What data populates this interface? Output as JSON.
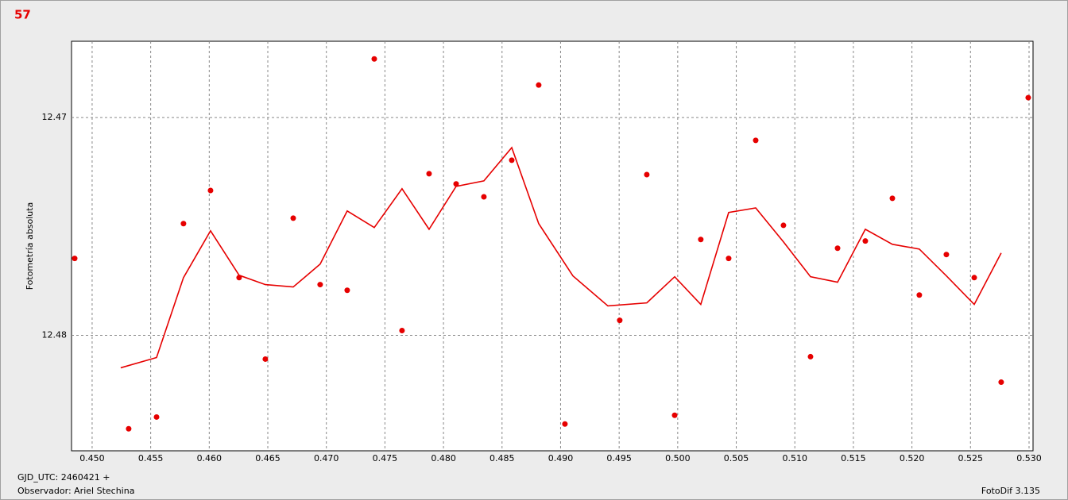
{
  "chart_data": {
    "type": "scatter",
    "title": "57",
    "y_label": "Fotometría absoluta",
    "xlim": [
      0.44824,
      0.53034
    ],
    "ylim": [
      12.4853,
      12.4665
    ],
    "grid": true,
    "xticks": [
      {
        "value": 0.45,
        "label": "0.450"
      },
      {
        "value": 0.455,
        "label": "0.455"
      },
      {
        "value": 0.46,
        "label": "0.460"
      },
      {
        "value": 0.465,
        "label": "0.465"
      },
      {
        "value": 0.47,
        "label": "0.470"
      },
      {
        "value": 0.475,
        "label": "0.475"
      },
      {
        "value": 0.48,
        "label": "0.480"
      },
      {
        "value": 0.485,
        "label": "0.485"
      },
      {
        "value": 0.49,
        "label": "0.490"
      },
      {
        "value": 0.495,
        "label": "0.495"
      },
      {
        "value": 0.5,
        "label": "0.500"
      },
      {
        "value": 0.505,
        "label": "0.505"
      },
      {
        "value": 0.51,
        "label": "0.510"
      },
      {
        "value": 0.515,
        "label": "0.515"
      },
      {
        "value": 0.52,
        "label": "0.520"
      },
      {
        "value": 0.525,
        "label": "0.525"
      },
      {
        "value": 0.53,
        "label": "0.530"
      }
    ],
    "yticks": [
      12.47,
      12.48
    ],
    "series": [
      {
        "type": "scatter",
        "color": "#e60000",
        "x": [
          0.44851,
          0.45312,
          0.4555,
          0.4578,
          0.46011,
          0.46255,
          0.46479,
          0.46717,
          0.46947,
          0.47178,
          0.47409,
          0.47646,
          0.47877,
          0.48108,
          0.48345,
          0.48583,
          0.48813,
          0.49037,
          0.49505,
          0.49736,
          0.49974,
          0.50197,
          0.50435,
          0.50666,
          0.50903,
          0.51134,
          0.51365,
          0.51602,
          0.51833,
          0.52063,
          0.52294,
          0.52532,
          0.52762,
          0.52993
        ],
        "values": [
          12.47647,
          12.48429,
          12.48375,
          12.47487,
          12.47335,
          12.47735,
          12.48109,
          12.47462,
          12.47767,
          12.47793,
          12.46731,
          12.47978,
          12.47258,
          12.47305,
          12.47364,
          12.47196,
          12.46851,
          12.48407,
          12.47931,
          12.47262,
          12.48367,
          12.4756,
          12.47647,
          12.47105,
          12.47495,
          12.48098,
          12.476,
          12.47567,
          12.47371,
          12.47815,
          12.47629,
          12.47735,
          12.48215,
          12.46909
        ]
      },
      {
        "type": "line",
        "color": "#e60000",
        "x": [
          0.45244,
          0.4555,
          0.4578,
          0.46011,
          0.46255,
          0.46479,
          0.46717,
          0.46947,
          0.47178,
          0.47409,
          0.47646,
          0.47877,
          0.48108,
          0.48345,
          0.48583,
          0.48813,
          0.49105,
          0.49404,
          0.49736,
          0.49974,
          0.50197,
          0.50435,
          0.50666,
          0.50903,
          0.51134,
          0.51365,
          0.51602,
          0.51833,
          0.52063,
          0.52294,
          0.52532,
          0.52762
        ],
        "values": [
          12.48149,
          12.48102,
          12.47735,
          12.4752,
          12.47724,
          12.47767,
          12.47778,
          12.47673,
          12.47429,
          12.47505,
          12.47327,
          12.47513,
          12.47316,
          12.47291,
          12.47138,
          12.47487,
          12.47727,
          12.47865,
          12.47851,
          12.47731,
          12.47858,
          12.47436,
          12.47415,
          12.47571,
          12.47731,
          12.47756,
          12.47513,
          12.47582,
          12.47604,
          12.47727,
          12.47858,
          12.47622
        ]
      }
    ]
  },
  "footer": {
    "date": "GJD_UTC: 2460421 +",
    "observer": "Observador: Ariel Stechina",
    "software": "FotoDif 3.135"
  }
}
